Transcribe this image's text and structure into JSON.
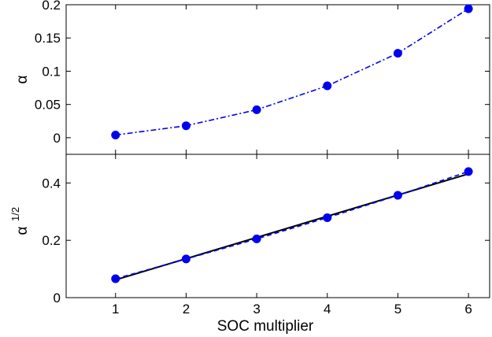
{
  "chart_data": {
    "type": "line",
    "xlabel": "SOC multiplier",
    "x_ticks": [
      "1",
      "2",
      "3",
      "4",
      "5",
      "6"
    ],
    "xlim": [
      0.3,
      6.3
    ],
    "panels": [
      {
        "ylabel": "α",
        "ylim": [
          -0.025,
          0.2
        ],
        "y_ticks": [
          "0",
          "0.05",
          "0.1",
          "0.15",
          "0.2"
        ],
        "series": [
          {
            "style": "dash-dot with markers",
            "color": "#0000ee",
            "x": [
              1,
              2,
              3,
              4,
              5,
              6
            ],
            "y": [
              0.004,
              0.018,
              0.042,
              0.078,
              0.127,
              0.194
            ]
          }
        ]
      },
      {
        "ylabel": "α",
        "ylabel_superscript": "1/2",
        "ylim": [
          0,
          0.5
        ],
        "y_ticks": [
          "0",
          "0.2",
          "0.4"
        ],
        "series": [
          {
            "style": "solid",
            "color": "#000000",
            "x": [
              1,
              6
            ],
            "y": [
              0.062,
              0.432
            ]
          },
          {
            "style": "dashed with markers",
            "color": "#0000ee",
            "x": [
              1,
              2,
              3,
              4,
              5,
              6
            ],
            "y": [
              0.066,
              0.135,
              0.205,
              0.279,
              0.357,
              0.44
            ]
          }
        ]
      }
    ]
  }
}
